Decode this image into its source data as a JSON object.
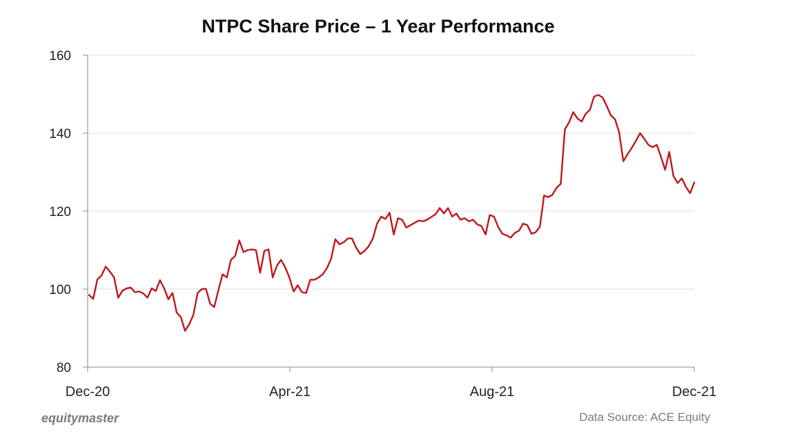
{
  "chart_data": {
    "type": "line",
    "title": "NTPC Share Price – 1 Year Performance",
    "xlabel": "",
    "ylabel": "",
    "ylim": [
      80,
      160
    ],
    "yticks": [
      80,
      100,
      120,
      140,
      160
    ],
    "x_tick_labels": [
      "Dec-20",
      "Apr-21",
      "Aug-21",
      "Dec-21"
    ],
    "grid": true,
    "series": [
      {
        "name": "NTPC",
        "color": "#c0151b",
        "values": [
          98.5,
          97.5,
          102.5,
          103.5,
          105.8,
          104.5,
          103.0,
          97.8,
          99.6,
          100.2,
          100.4,
          99.2,
          99.4,
          98.9,
          97.8,
          100.2,
          99.5,
          102.3,
          100.2,
          97.4,
          99.0,
          94.0,
          92.8,
          89.3,
          91.0,
          93.4,
          99.0,
          100.0,
          100.1,
          96.3,
          95.4,
          99.8,
          103.8,
          103.0,
          107.5,
          108.5,
          112.5,
          109.5,
          110.0,
          110.2,
          110.0,
          104.2,
          109.8,
          110.2,
          103.0,
          106.0,
          107.5,
          105.6,
          103.0,
          99.4,
          101.0,
          99.2,
          99.0,
          102.4,
          102.4,
          103.0,
          103.8,
          105.4,
          107.8,
          112.8,
          111.5,
          112.0,
          113.0,
          113.0,
          110.6,
          109.0,
          109.8,
          111.0,
          113.0,
          116.8,
          118.6,
          118.0,
          119.6,
          114.0,
          118.2,
          117.8,
          115.8,
          116.4,
          117.0,
          117.6,
          117.4,
          117.8,
          118.5,
          119.2,
          120.8,
          119.4,
          120.8,
          118.6,
          119.4,
          117.8,
          118.2,
          117.4,
          117.8,
          116.6,
          116.2,
          114.0,
          119.0,
          118.6,
          116.0,
          114.2,
          113.8,
          113.2,
          114.4,
          115.0,
          116.8,
          116.4,
          114.2,
          114.6,
          116.0,
          124.0,
          123.6,
          124.2,
          126.0,
          127.0,
          141.0,
          142.8,
          145.4,
          143.8,
          143.0,
          145.0,
          146.0,
          149.4,
          149.8,
          149.2,
          147.0,
          144.6,
          143.6,
          140.2,
          132.8,
          134.6,
          136.2,
          138.0,
          140.0,
          138.6,
          137.0,
          136.4,
          137.0,
          134.0,
          130.6,
          135.2,
          129.0,
          127.2,
          128.4,
          126.2,
          124.6,
          127.4
        ]
      }
    ]
  },
  "footer": {
    "brand": "equitymaster",
    "source": "Data Source: ACE Equity"
  }
}
